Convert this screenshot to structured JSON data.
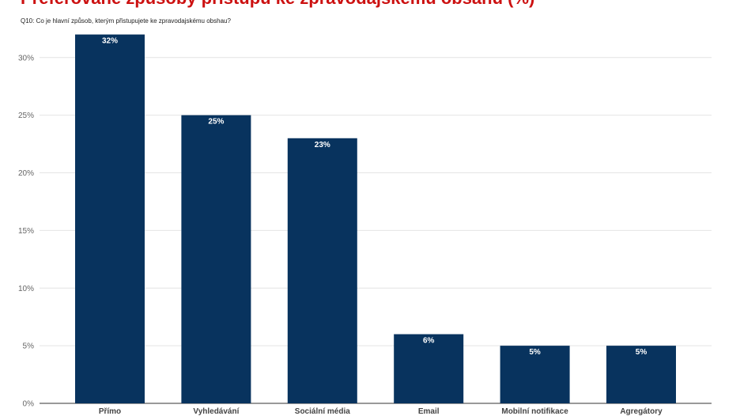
{
  "chart_data": {
    "type": "bar",
    "title": "Preferované způsoby přístupu ke zpravodajskému obsahu (%)",
    "subtitle": "Q10: Co je hlavní způsob, kterým přistupujete ke zpravodajskému obshau?",
    "categories": [
      "Přímo",
      "Vyhledávání",
      "Sociální média",
      "Email",
      "Mobilní notifikace",
      "Agregátory"
    ],
    "values": [
      32,
      25,
      23,
      6,
      5,
      5
    ],
    "value_labels": [
      "32%",
      "25%",
      "23%",
      "6%",
      "5%",
      "5%"
    ],
    "yticks": [
      0,
      5,
      10,
      15,
      20,
      25,
      30
    ],
    "ytick_labels": [
      "0%",
      "5%",
      "10%",
      "15%",
      "20%",
      "25%",
      "30%"
    ],
    "ylim": [
      0,
      32
    ],
    "xlabel": "",
    "ylabel": "",
    "grid": true,
    "bar_color": "#08335e",
    "title_color": "#cc1111"
  }
}
